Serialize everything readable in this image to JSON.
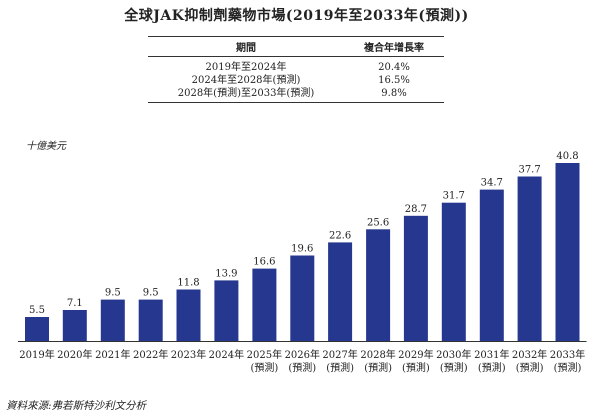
{
  "title": "全球JAK抑制劑藥物市場(2019年至2033年(預測))",
  "table": {
    "headers": [
      "期間",
      "複合年增長率"
    ],
    "rows": [
      {
        "period": "2019年至2024年",
        "rate": "20.4%"
      },
      {
        "period": "2024年至2028年(預測)",
        "rate": "16.5%"
      },
      {
        "period": "2028年(預測)至2033年(預測)",
        "rate": "9.8%"
      }
    ]
  },
  "unit_label": "十億美元",
  "source": "資料來源:弗若斯特沙利文分析",
  "colors": {
    "bar": "#26378f",
    "axis": "#333333"
  },
  "chart_data": {
    "type": "bar",
    "title": "全球JAK抑制劑藥物市場(2019年至2033年(預測))",
    "ylabel": "十億美元",
    "categories": [
      "2019年",
      "2020年",
      "2021年",
      "2022年",
      "2023年",
      "2024年",
      "2025年",
      "2026年",
      "2027年",
      "2028年",
      "2029年",
      "2030年",
      "2031年",
      "2032年",
      "2033年"
    ],
    "category_sublabels": [
      "",
      "",
      "",
      "",
      "",
      "",
      "(預測)",
      "(預測)",
      "(預測)",
      "(預測)",
      "(預測)",
      "(預測)",
      "(預測)",
      "(預測)",
      "(預測)"
    ],
    "values": [
      5.5,
      7.1,
      9.5,
      9.5,
      11.8,
      13.9,
      16.6,
      19.6,
      22.6,
      25.6,
      28.7,
      31.7,
      34.7,
      37.7,
      40.8
    ],
    "value_labels": [
      "5.5",
      "7.1",
      "9.5",
      "9.5",
      "11.8",
      "13.9",
      "16.6",
      "19.6",
      "22.6",
      "25.6",
      "28.7",
      "31.7",
      "34.7",
      "37.7",
      "40.8"
    ],
    "ylim": [
      0,
      40.8
    ],
    "grid": false,
    "legend": "none"
  }
}
